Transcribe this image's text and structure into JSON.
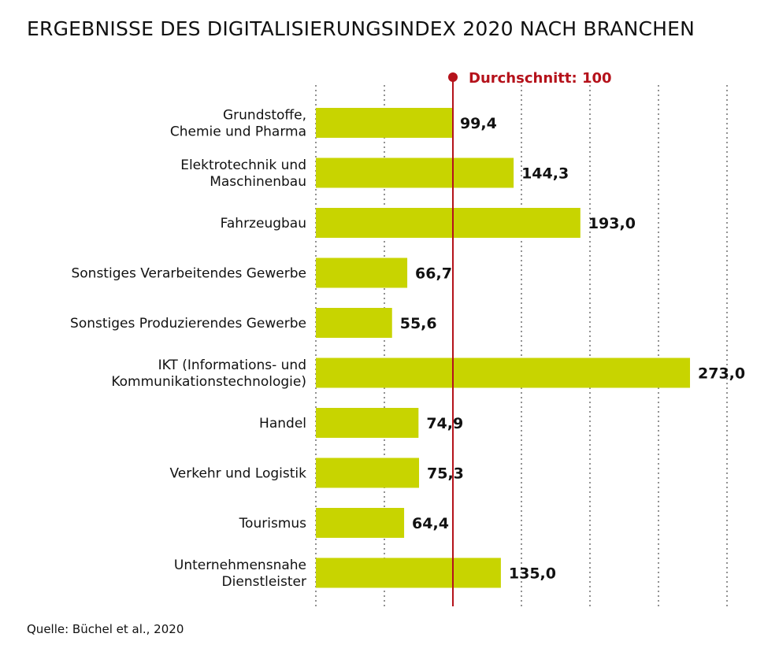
{
  "chart_data": {
    "type": "bar",
    "orientation": "horizontal",
    "title": "ERGEBNISSE DES DIGITALISIERUNGSINDEX 2020 NACH BRANCHEN",
    "categories": [
      [
        "Grundstoffe,",
        "Chemie und Pharma"
      ],
      [
        "Elektrotechnik und",
        "Maschinenbau"
      ],
      [
        "Fahrzeugbau"
      ],
      [
        "Sonstiges Verarbeitendes Gewerbe"
      ],
      [
        "Sonstiges Produzierendes Gewerbe"
      ],
      [
        "IKT (Informations- und",
        "Kommunikationstechnologie)"
      ],
      [
        "Handel"
      ],
      [
        "Verkehr und Logistik"
      ],
      [
        "Tourismus"
      ],
      [
        "Unternehmensnahe",
        "Dienstleister"
      ]
    ],
    "values": [
      99.4,
      144.3,
      193.0,
      66.7,
      55.6,
      273.0,
      74.9,
      75.3,
      64.4,
      135.0
    ],
    "value_labels": [
      "99,4",
      "144,3",
      "193,0",
      "66,7",
      "55,6",
      "273,0",
      "74,9",
      "75,3",
      "64,4",
      "135,0"
    ],
    "reference_line": {
      "value": 100,
      "label": "Durchschnitt: 100"
    },
    "xlim": [
      0,
      300
    ],
    "grid_step": 50,
    "grid": true,
    "bar_color": "#c8d400",
    "reference_color": "#b5121b",
    "xlabel": "",
    "ylabel": ""
  },
  "source": "Quelle: Büchel et al., 2020"
}
